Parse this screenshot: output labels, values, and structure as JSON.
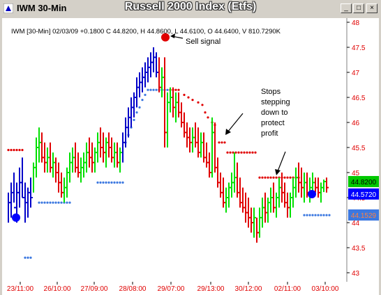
{
  "window": {
    "title": "IWM 30-Min",
    "chart_title": "Russell 2000 Index (Etfs)",
    "buttons": {
      "minimize": "_",
      "maximize": "□",
      "close": "×"
    }
  },
  "chart_data": {
    "type": "bar",
    "title": "Russell 2000 Index (Etfs)",
    "info_line": "IWM [30-Min] 02/03/09  +0.1800 C 44.8200, H 44.8600, L 44.6100, O 44.6400, V 810.7290K",
    "ylim": [
      43,
      48
    ],
    "y_ticks": [
      "48",
      "47.5",
      "47",
      "46.5",
      "46",
      "45.5",
      "45",
      "44.5",
      "44",
      "43.5",
      "43"
    ],
    "x_ticks": [
      "23/11:00",
      "26/10:00",
      "27/09:00",
      "28/08:00",
      "29/07:00",
      "29/13:00",
      "30/12:00",
      "02/11:00",
      "03/10:00"
    ],
    "price_labels": [
      {
        "value": "44.8200",
        "y": 44.82,
        "color": "#00c800",
        "text_color": "#000000"
      },
      {
        "value": "44.5720",
        "y": 44.572,
        "color": "#0000ff",
        "text_color": "#ffffff"
      },
      {
        "value": "44.1529",
        "y": 44.1529,
        "color": "#3c78e0",
        "text_color": "#ff8040"
      }
    ],
    "annotations": [
      {
        "id": "sell",
        "text": "Sell signal"
      },
      {
        "id": "stops",
        "lines": [
          "Stops",
          "stepping",
          "down to",
          "protect",
          "profit"
        ]
      }
    ],
    "colors": {
      "up": "#00e000",
      "down": "#e00000",
      "neutral": "#0000c8",
      "resistance_dots": "#e00000",
      "support_dots": "#3c78e0",
      "signal_red": "#e00000",
      "signal_blue": "#0000ff"
    }
  }
}
